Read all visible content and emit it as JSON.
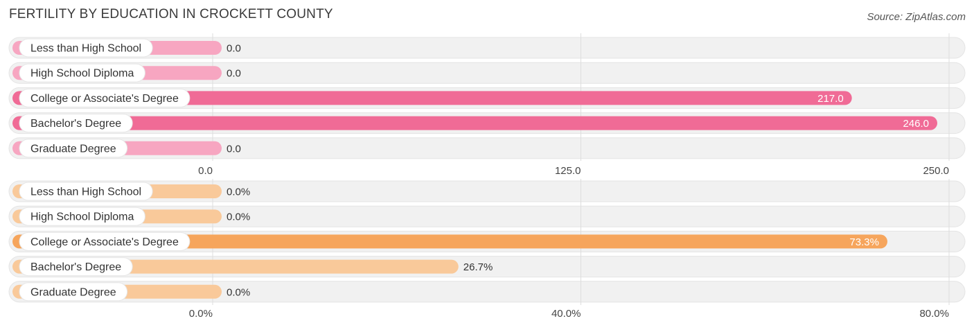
{
  "header": {
    "title": "FERTILITY BY EDUCATION IN CROCKETT COUNTY",
    "source": "Source: ZipAtlas.com"
  },
  "colors": {
    "pink_main": "#f06b96",
    "pink_light": "#f7a6c1",
    "orange_main": "#f6a55c",
    "orange_light": "#f9c99a",
    "track": "#f1f1f1",
    "grid": "#dddddd"
  },
  "chart_data": [
    {
      "type": "bar",
      "orientation": "horizontal",
      "categories": [
        "Less than High School",
        "High School Diploma",
        "College or Associate's Degree",
        "Bachelor's Degree",
        "Graduate Degree"
      ],
      "values": [
        0.0,
        0.0,
        217.0,
        246.0,
        0.0
      ],
      "value_labels": [
        "0.0",
        "0.0",
        "217.0",
        "246.0",
        "0.0"
      ],
      "xlim": [
        0,
        250
      ],
      "ticks": [
        0,
        125,
        250
      ],
      "tick_labels": [
        "0.0",
        "125.0",
        "250.0"
      ],
      "grid": true
    },
    {
      "type": "bar",
      "orientation": "horizontal",
      "categories": [
        "Less than High School",
        "High School Diploma",
        "College or Associate's Degree",
        "Bachelor's Degree",
        "Graduate Degree"
      ],
      "values": [
        0.0,
        0.0,
        73.3,
        26.7,
        0.0
      ],
      "value_labels": [
        "0.0%",
        "0.0%",
        "73.3%",
        "26.7%",
        "0.0%"
      ],
      "xlim": [
        0,
        80
      ],
      "ticks": [
        0,
        40,
        80
      ],
      "tick_labels": [
        "0.0%",
        "40.0%",
        "80.0%"
      ],
      "grid": true
    }
  ]
}
